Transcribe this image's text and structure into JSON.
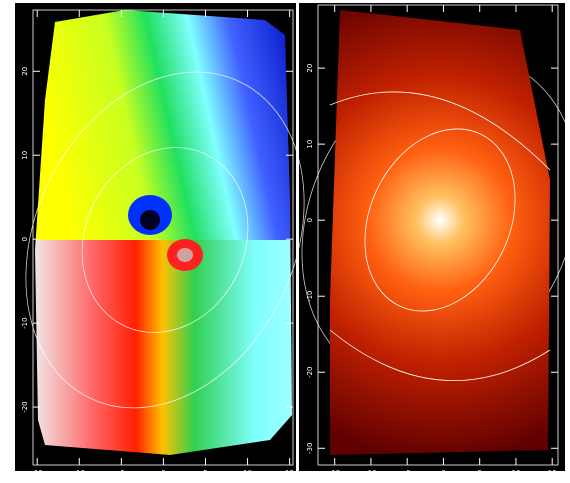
{
  "chart_data": [
    {
      "type": "image",
      "xlim": [
        -15.5,
        15.4
      ],
      "ylim": [
        -26.9,
        27.3
      ],
      "xticks": [
        -15,
        -10,
        -5,
        0,
        5,
        10,
        15
      ],
      "yticks": [
        -20,
        -10,
        0,
        10,
        20
      ]
    },
    {
      "type": "image",
      "xlim": [
        -17.3,
        15.8
      ],
      "ylim": [
        -32.2,
        28.3
      ],
      "xticks": [
        -15,
        -10,
        -5,
        0,
        5,
        10,
        15
      ],
      "yticks": [
        -30,
        -20,
        -10,
        0,
        10,
        20
      ]
    }
  ]
}
